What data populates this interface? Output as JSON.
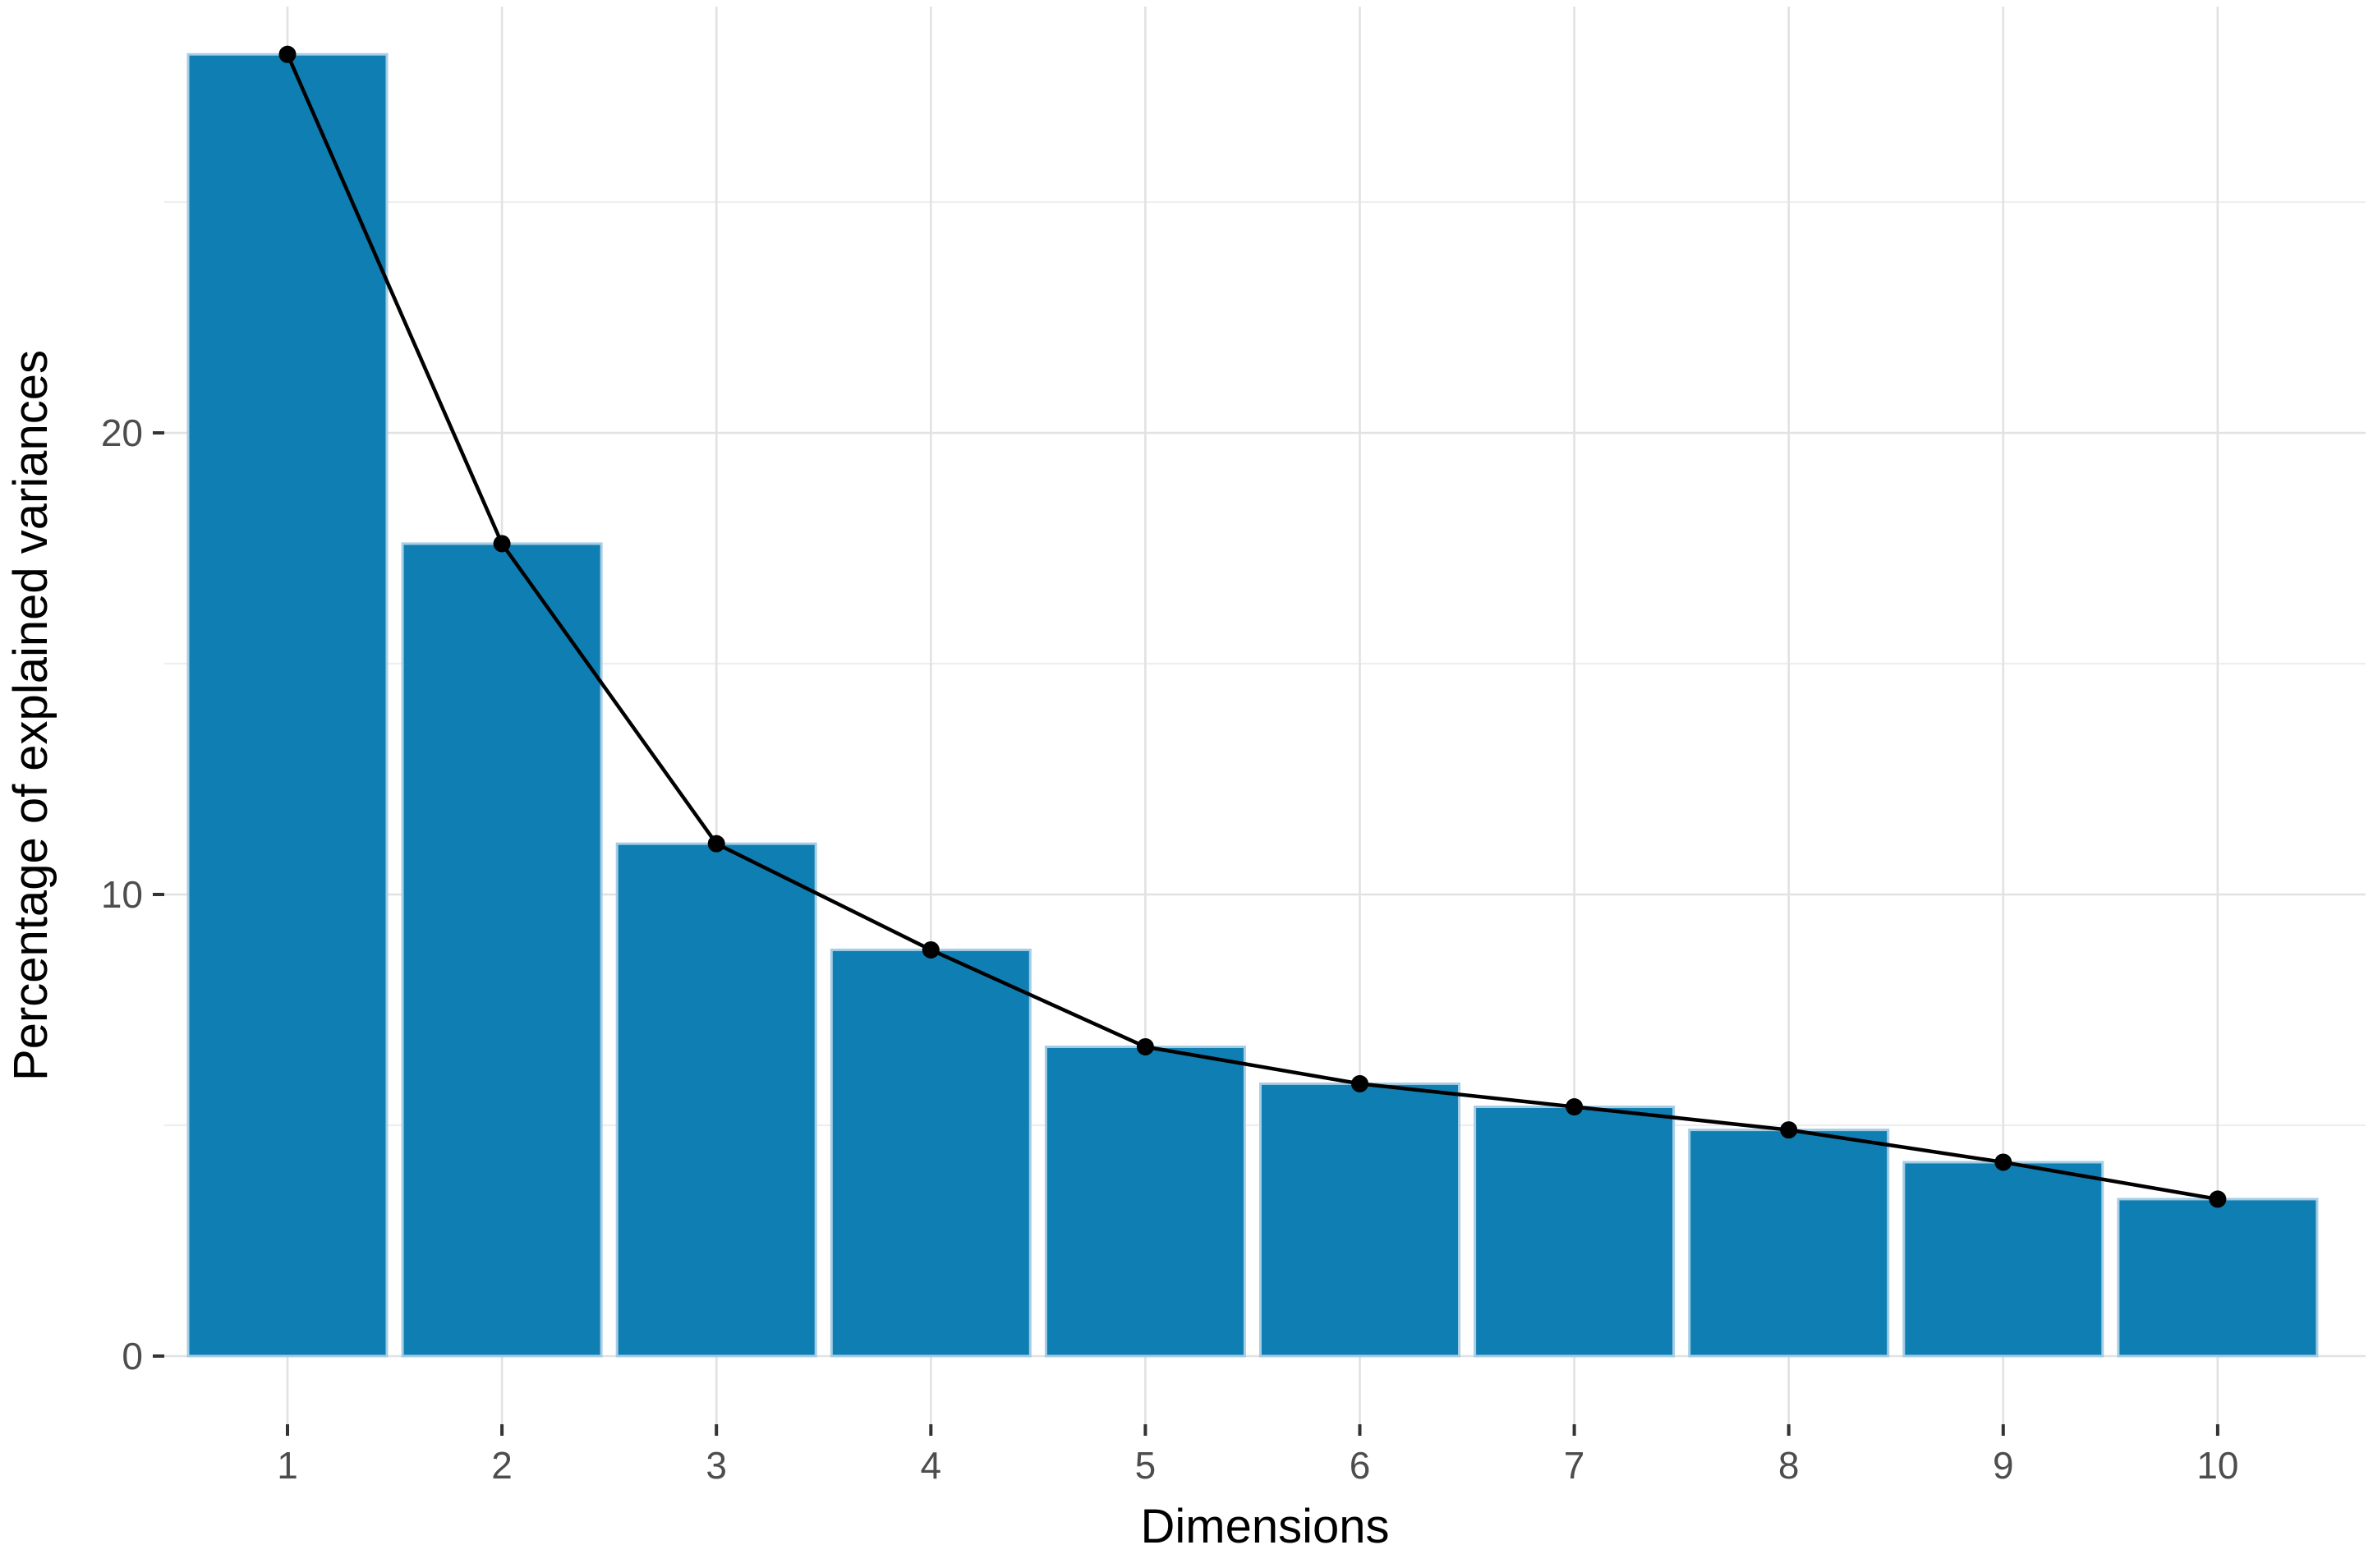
{
  "chart_data": {
    "type": "bar",
    "overlay": "line-with-points",
    "title": "",
    "xlabel": "Dimensions",
    "ylabel": "Percentage of explained variances",
    "categories": [
      "1",
      "2",
      "3",
      "4",
      "5",
      "6",
      "7",
      "8",
      "9",
      "10"
    ],
    "values": [
      28.2,
      17.6,
      11.1,
      8.8,
      6.7,
      5.9,
      5.4,
      4.9,
      4.2,
      3.4
    ],
    "series": [
      {
        "name": "percentage-of-explained-variances",
        "values": [
          28.2,
          17.6,
          11.1,
          8.8,
          6.7,
          5.9,
          5.4,
          4.9,
          4.2,
          3.4
        ]
      }
    ],
    "y_major_ticks": [
      0,
      10,
      20
    ],
    "y_minor_gridlines": [
      5,
      15,
      25
    ],
    "ylim": [
      0,
      29.2
    ],
    "grid": true,
    "legend_position": "none",
    "colors": {
      "bar_fill": "#0f7eb3",
      "bar_border": "#a5cde4",
      "line": "#000000",
      "point": "#000000",
      "grid_major": "#e2e2e2",
      "grid_minor": "#eeeeee",
      "tick_mark": "#333333",
      "tick_label": "#4d4d4d",
      "axis_title": "#000000",
      "background": "#ffffff"
    }
  }
}
